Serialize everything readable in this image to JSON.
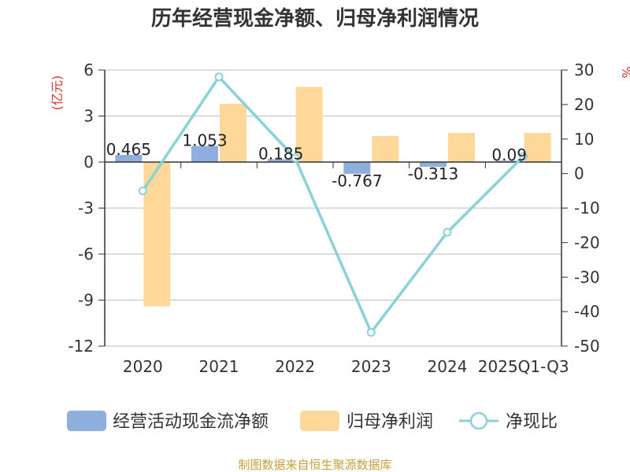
{
  "chart_data": {
    "type": "bar+line",
    "title": "历年经营现金净额、归母净利润情况",
    "categories": [
      "2020",
      "2021",
      "2022",
      "2023",
      "2024",
      "2025Q1-Q3"
    ],
    "left_axis": {
      "unit": "(亿元)",
      "ylim": [
        -12,
        6
      ],
      "ticks": [
        6,
        3,
        0,
        -3,
        -6,
        -9,
        -12
      ]
    },
    "right_axis": {
      "unit": "%",
      "ylim": [
        -50,
        30
      ],
      "ticks": [
        30,
        20,
        10,
        0,
        -10,
        -20,
        -30,
        -40,
        -50
      ]
    },
    "series": [
      {
        "name": "经营活动现金流净额",
        "type": "bar",
        "axis": "left",
        "color": "#8eaedd",
        "values": [
          0.465,
          1.053,
          0.185,
          -0.767,
          -0.313,
          0.09
        ],
        "labels": [
          "0.465",
          "1.053",
          "0.185",
          "-0.767",
          "-0.313",
          "0.09"
        ]
      },
      {
        "name": "归母净利润",
        "type": "bar",
        "axis": "left",
        "color": "#fdd898",
        "values": [
          -9.4,
          3.8,
          4.9,
          1.7,
          1.9,
          1.9
        ]
      },
      {
        "name": "净现比",
        "type": "line",
        "axis": "right",
        "color": "#8ad2d8",
        "values": [
          -5,
          28,
          4.5,
          -46,
          -17,
          5
        ]
      }
    ],
    "source": "制图数据来自恒生聚源数据库",
    "colors": {
      "axis_unit": "#e03030",
      "source": "#c8a040",
      "grid": "#d0d0d0",
      "axis": "#333333"
    }
  }
}
